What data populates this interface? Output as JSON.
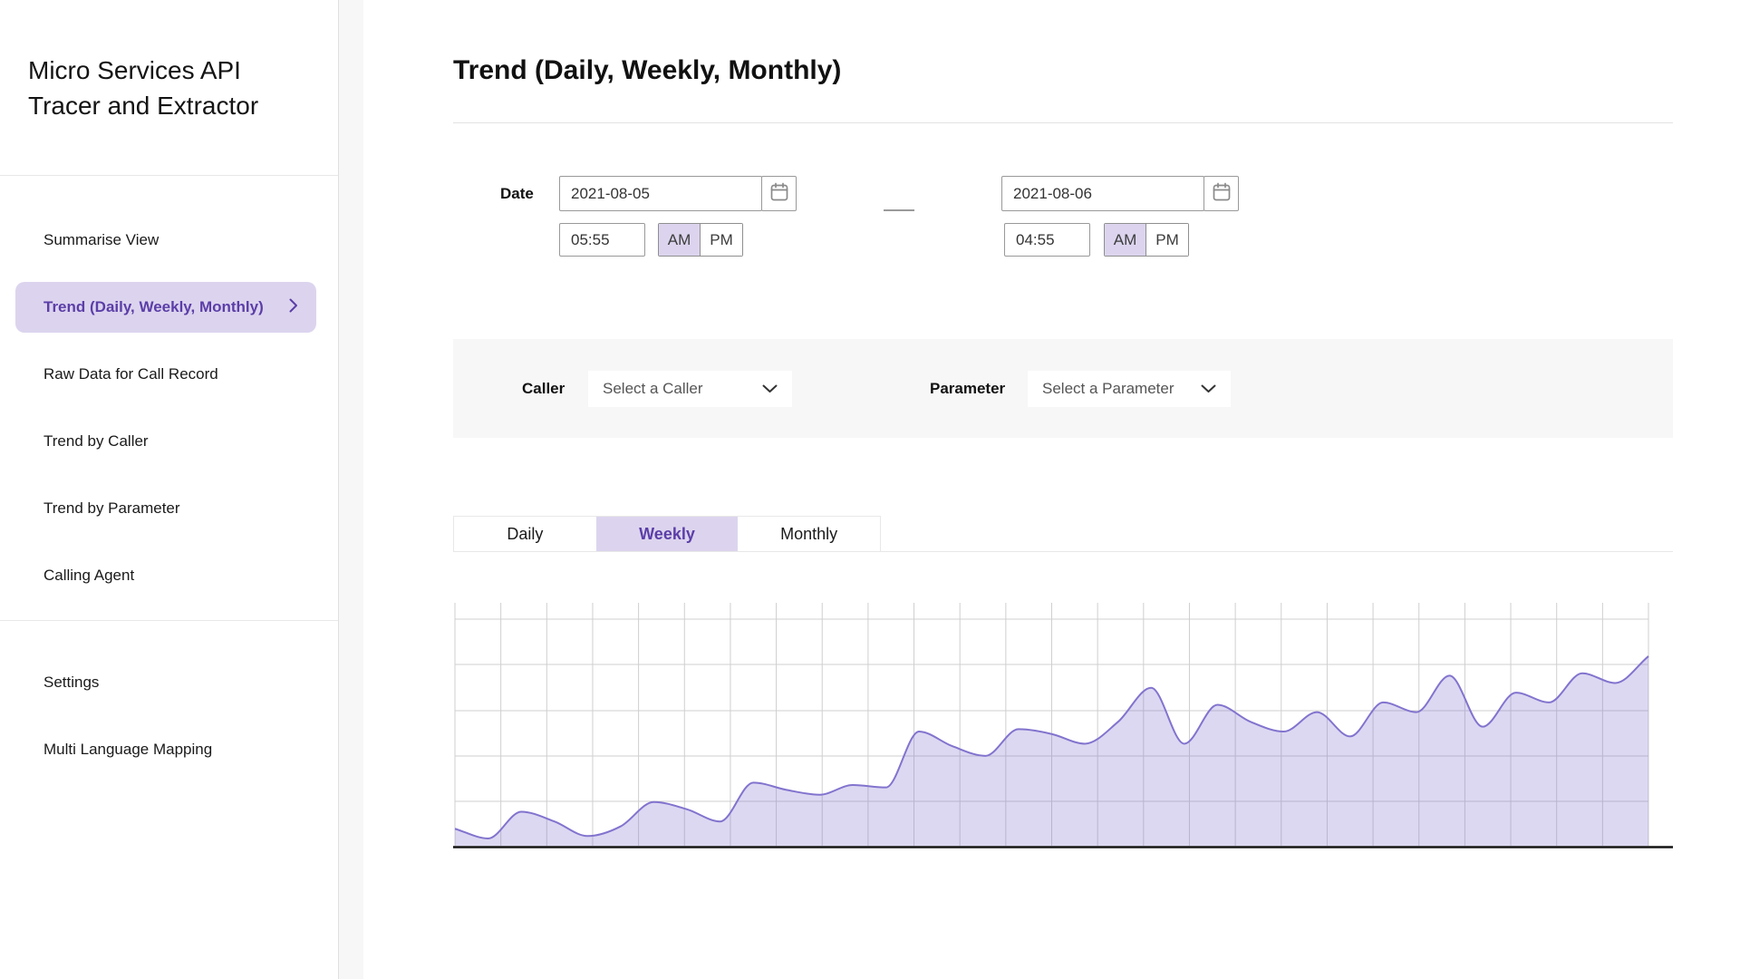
{
  "app": {
    "title": "Micro Services API Tracer and Extractor"
  },
  "colors": {
    "accent": "#5b3ea8",
    "accent_light": "#dcd4ee",
    "chart_line": "#8273ce",
    "chart_fill": "rgba(131,115,208,0.28)",
    "grid_line": "#cfcfcf",
    "axis_line": "#141414",
    "panel_bg": "#f7f7f7",
    "input_border": "#999999"
  },
  "icons": {
    "calendar": "calendar-icon",
    "dropdown": "chevron-down-icon",
    "active_nav": "chevron-right-icon"
  },
  "sidebar": {
    "items": [
      {
        "label": "Summarise View",
        "active": false
      },
      {
        "label": "Trend (Daily, Weekly, Monthly)",
        "active": true
      },
      {
        "label": "Raw Data for Call Record",
        "active": false
      },
      {
        "label": "Trend by Caller",
        "active": false
      },
      {
        "label": "Trend by Parameter",
        "active": false
      },
      {
        "label": "Calling Agent",
        "active": false
      }
    ],
    "footer_items": [
      {
        "label": "Settings"
      },
      {
        "label": "Multi Language Mapping"
      }
    ]
  },
  "header": {
    "title": "Trend (Daily, Weekly, Monthly)"
  },
  "filters": {
    "date_label": "Date",
    "start": {
      "date": "2021-08-05",
      "time": "05:55",
      "meridiem": "AM",
      "am_label": "AM",
      "pm_label": "PM"
    },
    "end": {
      "date": "2021-08-06",
      "time": "04:55",
      "meridiem": "AM",
      "am_label": "AM",
      "pm_label": "PM"
    },
    "caller_label": "Caller",
    "caller_placeholder": "Select a Caller",
    "parameter_label": "Parameter",
    "parameter_placeholder": "Select a Parameter"
  },
  "tabs": [
    {
      "label": "Daily",
      "active": false
    },
    {
      "label": "Weekly",
      "active": true
    },
    {
      "label": "Monthly",
      "active": false
    }
  ],
  "chart_data": {
    "type": "area",
    "title": "",
    "xlabel": "",
    "ylabel": "",
    "x_axis_labels_visible": false,
    "y_axis_labels_visible": false,
    "grid": true,
    "smoothing": "monotone",
    "ylim": [
      0,
      100
    ],
    "x": [
      1,
      2,
      3,
      4,
      5,
      6,
      7,
      8,
      9,
      10,
      11,
      12,
      13,
      14,
      15,
      16,
      17,
      18,
      19,
      20,
      21,
      22,
      23,
      24,
      25,
      26,
      27,
      28,
      29,
      30,
      31,
      32,
      33,
      34,
      35,
      36,
      37
    ],
    "values": [
      7,
      3,
      14,
      10,
      4,
      8,
      18,
      15,
      10,
      26,
      23,
      21,
      25,
      24,
      47,
      41,
      37,
      48,
      46,
      42,
      51,
      65,
      42,
      58,
      51,
      47,
      55,
      45,
      59,
      55,
      70,
      49,
      63,
      59,
      71,
      67,
      78
    ]
  }
}
